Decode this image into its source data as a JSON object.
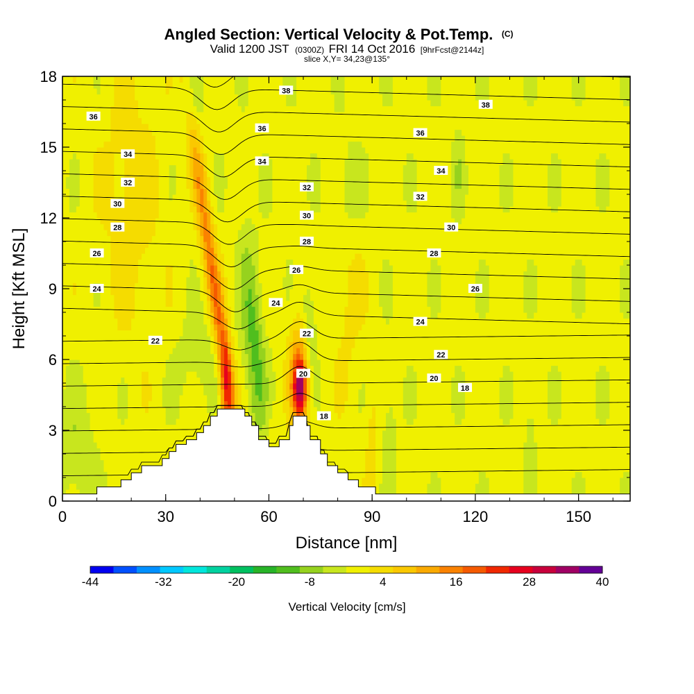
{
  "chart_data": {
    "type": "heatmap",
    "title": {
      "main": "Angled Section: Vertical Velocity & Pot.Temp.",
      "copyright": "(C)"
    },
    "subtitle": {
      "valid_prefix": "Valid 1200 JST",
      "utc": "(0300Z)",
      "valid_date": "FRI 14 Oct 2016",
      "forecast": "[9hrFcst@2144z]"
    },
    "slice_text": "slice X,Y= 34,23@135°",
    "xlabel": "Distance [nm]",
    "ylabel": "Height [Kft MSL]",
    "xlim": [
      0,
      165
    ],
    "ylim": [
      0,
      18
    ],
    "xticks": [
      0,
      30,
      60,
      90,
      120,
      150
    ],
    "yticks": [
      0,
      3,
      6,
      9,
      12,
      15,
      18
    ],
    "colorbar": {
      "title": "Vertical Velocity [cm/s]",
      "tick_labels": [
        "-44",
        "-32",
        "-20",
        "-8",
        "4",
        "16",
        "28",
        "40"
      ],
      "tick_values": [
        -44,
        -32,
        -20,
        -8,
        4,
        16,
        28,
        40
      ],
      "bins": [
        -44,
        -40,
        -36,
        -32,
        -28,
        -24,
        -20,
        -16,
        -12,
        -8,
        -4,
        0,
        4,
        8,
        12,
        16,
        20,
        24,
        28,
        32,
        36,
        40
      ],
      "colors": [
        "#0000f0",
        "#0050ff",
        "#0090ff",
        "#00c8ff",
        "#00e6dc",
        "#00d2a0",
        "#00c060",
        "#28b428",
        "#50be1e",
        "#96d21e",
        "#c8e61e",
        "#f0f000",
        "#f5dc00",
        "#fac800",
        "#faaa00",
        "#fa8200",
        "#f55a00",
        "#f02800",
        "#e6001e",
        "#c8003c",
        "#a00064",
        "#640096"
      ]
    },
    "theta_labels": [
      {
        "value": "38",
        "x": 65,
        "y": 17.4
      },
      {
        "value": "38",
        "x": 123,
        "y": 16.8
      },
      {
        "value": "36",
        "x": 9,
        "y": 16.3
      },
      {
        "value": "36",
        "x": 58,
        "y": 15.8
      },
      {
        "value": "36",
        "x": 104,
        "y": 15.6
      },
      {
        "value": "34",
        "x": 19,
        "y": 14.7
      },
      {
        "value": "34",
        "x": 58,
        "y": 14.4
      },
      {
        "value": "34",
        "x": 110,
        "y": 14.0
      },
      {
        "value": "32",
        "x": 19,
        "y": 13.5
      },
      {
        "value": "32",
        "x": 71,
        "y": 13.3
      },
      {
        "value": "32",
        "x": 104,
        "y": 12.9
      },
      {
        "value": "30",
        "x": 16,
        "y": 12.6
      },
      {
        "value": "30",
        "x": 71,
        "y": 12.1
      },
      {
        "value": "30",
        "x": 113,
        "y": 11.6
      },
      {
        "value": "28",
        "x": 16,
        "y": 11.6
      },
      {
        "value": "28",
        "x": 71,
        "y": 11.0
      },
      {
        "value": "28",
        "x": 108,
        "y": 10.5
      },
      {
        "value": "26",
        "x": 10,
        "y": 10.5
      },
      {
        "value": "26",
        "x": 68,
        "y": 9.8
      },
      {
        "value": "26",
        "x": 120,
        "y": 9.0
      },
      {
        "value": "24",
        "x": 10,
        "y": 9.0
      },
      {
        "value": "24",
        "x": 62,
        "y": 8.4
      },
      {
        "value": "24",
        "x": 104,
        "y": 7.6
      },
      {
        "value": "22",
        "x": 27,
        "y": 6.8
      },
      {
        "value": "22",
        "x": 71,
        "y": 7.1
      },
      {
        "value": "22",
        "x": 110,
        "y": 6.2
      },
      {
        "value": "20",
        "x": 70,
        "y": 5.4
      },
      {
        "value": "20",
        "x": 108,
        "y": 5.2
      },
      {
        "value": "18",
        "x": 117,
        "y": 4.8
      },
      {
        "value": "18",
        "x": 76,
        "y": 3.6
      }
    ],
    "terrain": [
      [
        0,
        0
      ],
      [
        0,
        0.3
      ],
      [
        10,
        0.3
      ],
      [
        10,
        0.6
      ],
      [
        17,
        0.6
      ],
      [
        17,
        0.9
      ],
      [
        20,
        0.9
      ],
      [
        20,
        1.2
      ],
      [
        23,
        1.2
      ],
      [
        23,
        1.5
      ],
      [
        29,
        1.5
      ],
      [
        29,
        1.8
      ],
      [
        31,
        1.8
      ],
      [
        31,
        2.1
      ],
      [
        33,
        2.1
      ],
      [
        33,
        2.4
      ],
      [
        36,
        2.4
      ],
      [
        36,
        2.6
      ],
      [
        39,
        2.6
      ],
      [
        39,
        2.9
      ],
      [
        41,
        2.9
      ],
      [
        41,
        3.2
      ],
      [
        43,
        3.2
      ],
      [
        43,
        3.6
      ],
      [
        45,
        3.6
      ],
      [
        45,
        3.9
      ],
      [
        53,
        3.9
      ],
      [
        53,
        3.6
      ],
      [
        55,
        3.6
      ],
      [
        55,
        3.2
      ],
      [
        57,
        3.2
      ],
      [
        57,
        2.6
      ],
      [
        60,
        2.6
      ],
      [
        60,
        2.3
      ],
      [
        63,
        2.3
      ],
      [
        63,
        2.6
      ],
      [
        66,
        2.6
      ],
      [
        66,
        3.2
      ],
      [
        67,
        3.2
      ],
      [
        67,
        3.6
      ],
      [
        71,
        3.6
      ],
      [
        71,
        3.2
      ],
      [
        72,
        3.2
      ],
      [
        72,
        2.6
      ],
      [
        75,
        2.6
      ],
      [
        75,
        2.0
      ],
      [
        77,
        2.0
      ],
      [
        77,
        1.5
      ],
      [
        80,
        1.5
      ],
      [
        80,
        1.2
      ],
      [
        83,
        1.2
      ],
      [
        83,
        0.9
      ],
      [
        86,
        0.9
      ],
      [
        86,
        0.6
      ],
      [
        91,
        0.6
      ],
      [
        91,
        0.3
      ],
      [
        165,
        0.3
      ],
      [
        165,
        0
      ]
    ]
  }
}
